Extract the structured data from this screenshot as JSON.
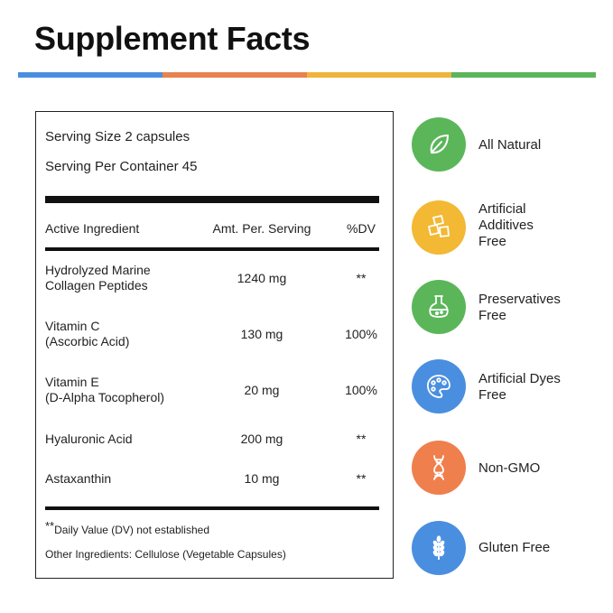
{
  "title": "Supplement Facts",
  "colors": {
    "bar": [
      "#4a8ee0",
      "#e8824e",
      "#f0b43a",
      "#5bb65a"
    ],
    "green": "#5bb65a",
    "yellow": "#f3b834",
    "blue": "#4a8ee0",
    "orange": "#ef7f4d"
  },
  "facts": {
    "serving_size": "Serving Size  2 capsules",
    "serving_per_container": "Serving Per Container 45",
    "headers": {
      "ingredient": "Active Ingredient",
      "amount": "Amt. Per. Serving",
      "dv": "%DV"
    },
    "rows": [
      {
        "line1": "Hydrolyzed Marine",
        "line2": "Collagen Peptides",
        "amount": "1240 mg",
        "dv": "**"
      },
      {
        "line1": "Vitamin C",
        "line2": "(Ascorbic Acid)",
        "amount": "130 mg",
        "dv": "100%"
      },
      {
        "line1": "Vitamin E",
        "line2": "(D-Alpha Tocopherol)",
        "amount": "20 mg",
        "dv": "100%"
      },
      {
        "line1": "Hyaluronic Acid",
        "line2": "",
        "amount": "200 mg",
        "dv": "**"
      },
      {
        "line1": "Astaxanthin",
        "line2": "",
        "amount": "10 mg",
        "dv": "**"
      }
    ],
    "footnote_marker": "**",
    "footnote_text": "Daily Value (DV) not established",
    "other_ingredients": "Other Ingredients: Cellulose (Vegetable Capsules)"
  },
  "features": [
    {
      "icon": "leaf-icon",
      "color": "#5bb65a",
      "lines": [
        "All Natural"
      ]
    },
    {
      "icon": "cubes-icon",
      "color": "#f3b834",
      "lines": [
        "Artificial",
        "Additives",
        "Free"
      ]
    },
    {
      "icon": "flask-icon",
      "color": "#5bb65a",
      "lines": [
        "Preservatives",
        "Free"
      ]
    },
    {
      "icon": "palette-icon",
      "color": "#4a8ee0",
      "lines": [
        "Artificial Dyes",
        "Free"
      ]
    },
    {
      "icon": "dna-icon",
      "color": "#ef7f4d",
      "lines": [
        "Non-GMO"
      ]
    },
    {
      "icon": "wheat-icon",
      "color": "#4a8ee0",
      "lines": [
        "Gluten Free"
      ]
    }
  ]
}
